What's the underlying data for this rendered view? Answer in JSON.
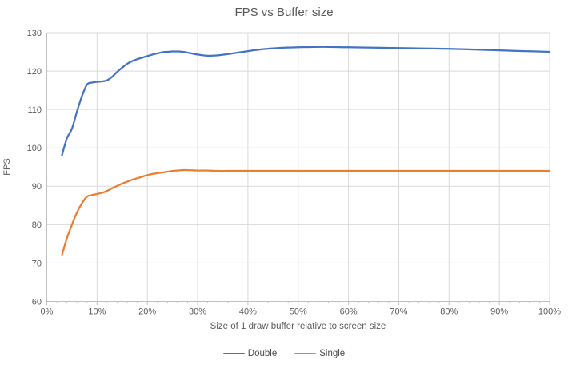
{
  "chart_data": {
    "type": "line",
    "title": "FPS vs Buffer size",
    "xlabel": "Size of 1 draw buffer relative to screen size",
    "ylabel": "FPS",
    "xlim": [
      0,
      100
    ],
    "ylim": [
      60,
      130
    ],
    "x_tick_labels": [
      "0%",
      "10%",
      "20%",
      "30%",
      "40%",
      "50%",
      "60%",
      "70%",
      "80%",
      "90%",
      "100%"
    ],
    "x_tick_values": [
      0,
      10,
      20,
      30,
      40,
      50,
      60,
      70,
      80,
      90,
      100
    ],
    "x_minor_tick_step": 2,
    "y_tick_labels": [
      "60",
      "70",
      "80",
      "90",
      "100",
      "110",
      "120",
      "130"
    ],
    "y_tick_values": [
      60,
      70,
      80,
      90,
      100,
      110,
      120,
      130
    ],
    "grid": true,
    "legend_position": "bottom",
    "colors": {
      "grid": "#d9d9d9",
      "axis": "#bfbfbf",
      "tick_text": "#595959",
      "title_text": "#595959"
    },
    "series": [
      {
        "name": "Double",
        "color": "#4472c4",
        "smooth": true,
        "points": [
          [
            3,
            98
          ],
          [
            4,
            102.5
          ],
          [
            5,
            105
          ],
          [
            6,
            109.5
          ],
          [
            7,
            113.5
          ],
          [
            8,
            116.5
          ],
          [
            9,
            117
          ],
          [
            10,
            117.2
          ],
          [
            11,
            117.3
          ],
          [
            12,
            117.6
          ],
          [
            13,
            118.5
          ],
          [
            14,
            119.8
          ],
          [
            15,
            120.9
          ],
          [
            16,
            121.9
          ],
          [
            17,
            122.6
          ],
          [
            18,
            123.1
          ],
          [
            19,
            123.5
          ],
          [
            20,
            123.9
          ],
          [
            21,
            124.3
          ],
          [
            22,
            124.6
          ],
          [
            23,
            124.9
          ],
          [
            24,
            125
          ],
          [
            25,
            125.1
          ],
          [
            26,
            125.1
          ],
          [
            27,
            125
          ],
          [
            28,
            124.8
          ],
          [
            30,
            124.3
          ],
          [
            32,
            124
          ],
          [
            34,
            124.1
          ],
          [
            36,
            124.4
          ],
          [
            38,
            124.8
          ],
          [
            40,
            125.2
          ],
          [
            43,
            125.7
          ],
          [
            46,
            126
          ],
          [
            50,
            126.2
          ],
          [
            55,
            126.3
          ],
          [
            60,
            126.2
          ],
          [
            65,
            126.1
          ],
          [
            70,
            126
          ],
          [
            75,
            125.9
          ],
          [
            80,
            125.8
          ],
          [
            85,
            125.6
          ],
          [
            90,
            125.4
          ],
          [
            95,
            125.2
          ],
          [
            100,
            125
          ]
        ]
      },
      {
        "name": "Single",
        "color": "#ed7d31",
        "smooth": true,
        "points": [
          [
            3,
            72
          ],
          [
            4,
            76.5
          ],
          [
            5,
            80
          ],
          [
            6,
            83.2
          ],
          [
            7,
            85.6
          ],
          [
            8,
            87.3
          ],
          [
            9,
            87.7
          ],
          [
            10,
            88
          ],
          [
            11,
            88.3
          ],
          [
            12,
            88.8
          ],
          [
            13,
            89.5
          ],
          [
            14,
            90.1
          ],
          [
            15,
            90.7
          ],
          [
            16,
            91.2
          ],
          [
            17,
            91.7
          ],
          [
            18,
            92.1
          ],
          [
            19,
            92.5
          ],
          [
            20,
            92.9
          ],
          [
            21,
            93.2
          ],
          [
            22,
            93.4
          ],
          [
            23,
            93.6
          ],
          [
            24,
            93.8
          ],
          [
            25,
            94
          ],
          [
            26,
            94.1
          ],
          [
            27,
            94.2
          ],
          [
            28,
            94.2
          ],
          [
            30,
            94.1
          ],
          [
            32,
            94.1
          ],
          [
            34,
            94
          ],
          [
            36,
            94
          ],
          [
            40,
            94
          ],
          [
            45,
            94
          ],
          [
            50,
            94
          ],
          [
            55,
            94
          ],
          [
            60,
            94
          ],
          [
            65,
            94
          ],
          [
            70,
            94
          ],
          [
            75,
            94
          ],
          [
            80,
            94
          ],
          [
            85,
            94
          ],
          [
            90,
            94
          ],
          [
            95,
            94
          ],
          [
            100,
            94
          ]
        ]
      }
    ]
  }
}
